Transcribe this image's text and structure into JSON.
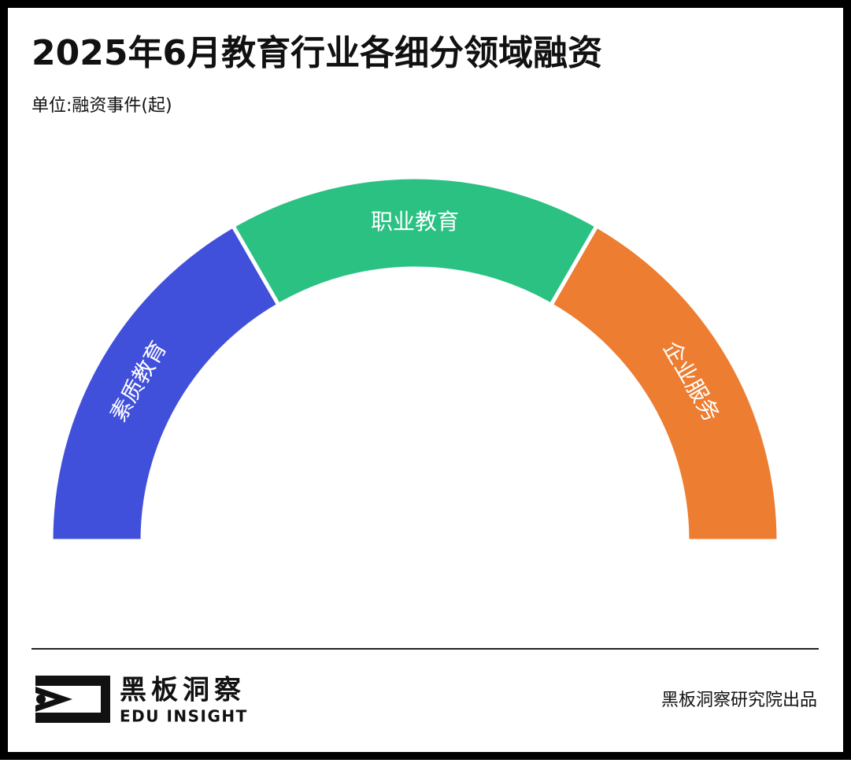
{
  "chart_data": {
    "type": "pie",
    "title": "2025年6月教育行业各细分领域融资",
    "subtitle": "单位:融资事件(起)",
    "categories": [
      "素质教育",
      "职业教育",
      "企业服务"
    ],
    "values": [
      1,
      1,
      1
    ],
    "colors": [
      "#4150db",
      "#2bc183",
      "#ed7d31"
    ]
  },
  "footer": {
    "brand": "黑板洞察",
    "brand_en": "EDU INSIGHT",
    "credit": "黑板洞察研究院出品"
  }
}
